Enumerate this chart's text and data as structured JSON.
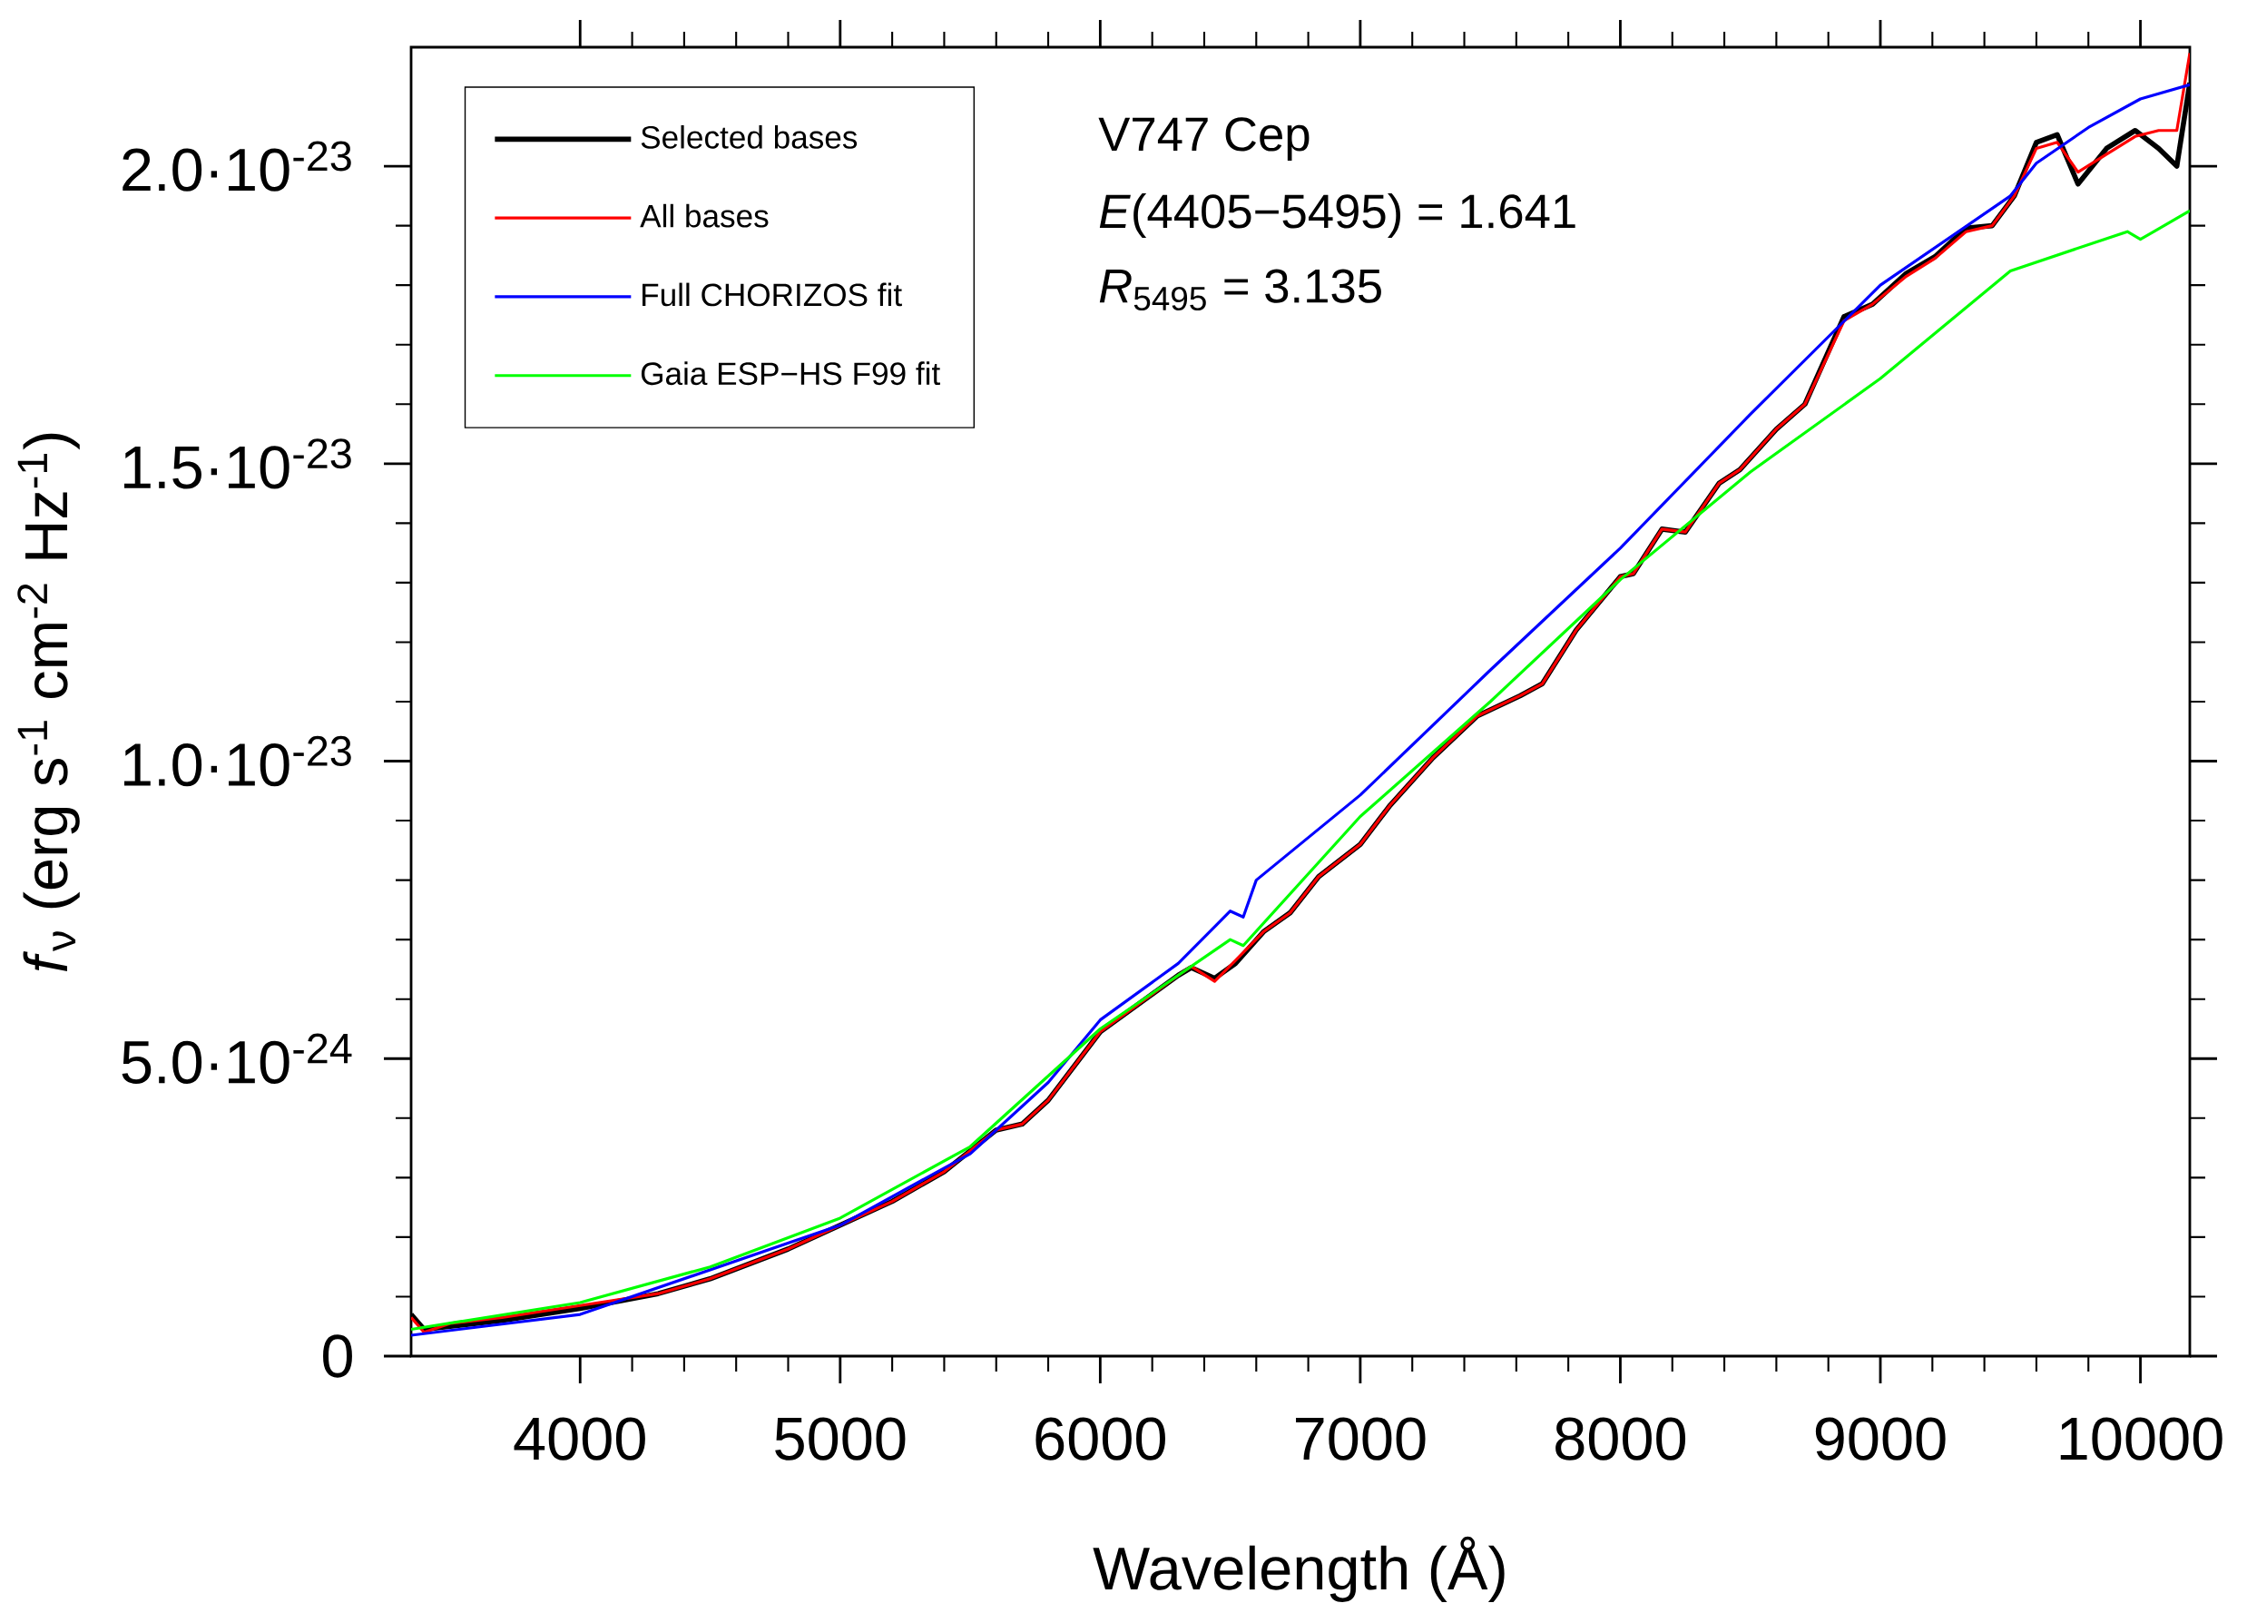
{
  "chart_data": {
    "type": "line",
    "xlabel": "Wavelength (Å)",
    "ylabel": "*f*$_{ν}$ (erg s$^{-1}$ cm$^{-2}$ Hz$^{-1}$)",
    "annotations": [
      "V747 Cep",
      "*E*(4405−5495) = 1.641",
      "*R*$_{5495}$ = 3.135"
    ],
    "xlim": [
      3350,
      10190
    ],
    "ylim": [
      0,
      2.2e-23
    ],
    "xticks": [
      4000,
      5000,
      6000,
      7000,
      8000,
      9000,
      10000
    ],
    "yticks": [
      {
        "value": 0,
        "label": "0"
      },
      {
        "value": 5e-24,
        "label": "5.0·10$^{-24}$"
      },
      {
        "value": 1e-23,
        "label": "1.0·10$^{-23}$"
      },
      {
        "value": 1.5e-23,
        "label": "1.5·10$^{-23}$"
      },
      {
        "value": 2e-23,
        "label": "2.0·10$^{-23}$"
      }
    ],
    "x": [
      3350,
      3400,
      3500,
      3700,
      4000,
      4300,
      4500,
      4800,
      5000,
      5200,
      5400,
      5600,
      5700,
      5800,
      6000,
      6300,
      6350,
      6440,
      6520,
      6630,
      6730,
      6840,
      7000,
      7115,
      7280,
      7450,
      7615,
      7700,
      7830,
      8000,
      8050,
      8160,
      8250,
      8380,
      8460,
      8600,
      8710,
      8860,
      8970,
      9100,
      9210,
      9330,
      9430,
      9515,
      9600,
      9680,
      9760,
      9870,
      9980,
      10070,
      10140,
      10190
    ],
    "grid": false,
    "legend": "top left",
    "marker": "none",
    "line_style": "solid",
    "series": [
      {
        "name": "Selected bases",
        "color": "#000000",
        "values": [
          7e-25,
          4.5e-25,
          5e-25,
          6e-25,
          8e-25,
          1.05e-24,
          1.3e-24,
          1.8e-24,
          2.2e-24,
          2.6e-24,
          3.1e-24,
          3.8e-24,
          3.9e-24,
          4.3e-24,
          5.45e-24,
          6.4e-24,
          6.53e-24,
          6.35e-24,
          6.6e-24,
          7.14e-24,
          7.45e-24,
          8.06e-24,
          8.6e-24,
          9.26e-24,
          1.006e-23,
          1.076e-23,
          1.11e-23,
          1.13e-23,
          1.22e-23,
          1.31e-23,
          1.315e-23,
          1.39e-23,
          1.385e-23,
          1.467e-23,
          1.49e-23,
          1.558e-23,
          1.6e-23,
          1.747e-23,
          1.768e-23,
          1.82e-23,
          1.848e-23,
          1.896e-23,
          1.9e-23,
          1.95e-23,
          2.04e-23,
          2.053e-23,
          1.97e-23,
          2.03e-23,
          2.06e-23,
          2.03e-23,
          2e-23,
          2.14e-23
        ]
      },
      {
        "name": "All bases",
        "color": "#ff0000",
        "values": [
          6.5e-25,
          4e-25,
          5.5e-25,
          6.5e-25,
          8.5e-25,
          1.05e-24,
          1.3e-24,
          1.8e-24,
          2.2e-24,
          2.6e-24,
          3.1e-24,
          3.8e-24,
          3.9e-24,
          4.3e-24,
          5.45e-24,
          6.4e-24,
          6.55e-24,
          6.3e-24,
          6.65e-24,
          7.14e-24,
          7.45e-24,
          8.06e-24,
          8.6e-24,
          9.26e-24,
          1.006e-23,
          1.076e-23,
          1.11e-23,
          1.13e-23,
          1.22e-23,
          1.31e-23,
          1.315e-23,
          1.39e-23,
          1.385e-23,
          1.467e-23,
          1.49e-23,
          1.558e-23,
          1.6e-23,
          1.74e-23,
          1.768e-23,
          1.815e-23,
          1.845e-23,
          1.89e-23,
          1.9e-23,
          1.95e-23,
          2.03e-23,
          2.04e-23,
          1.99e-23,
          2.02e-23,
          2.05e-23,
          2.06e-23,
          2.06e-23,
          2.19e-23
        ]
      },
      {
        "name": "Full CHORIZOS fit",
        "color": "#0000ff",
        "x": [
          3350,
          4000,
          5000,
          5500,
          5800,
          6000,
          6300,
          6500,
          6550,
          6600,
          7000,
          7500,
          8000,
          8500,
          9000,
          9500,
          9600,
          9800,
          10000,
          10190
        ],
        "values": [
          3.5e-25,
          7e-25,
          2.2e-24,
          3.4e-24,
          4.6e-24,
          5.65e-24,
          6.6e-24,
          7.48e-24,
          7.38e-24,
          8e-24,
          9.43e-24,
          1.153e-23,
          1.358e-23,
          1.583e-23,
          1.8e-23,
          1.95e-23,
          2.005e-23,
          2.065e-23,
          2.113e-23,
          2.137e-23
        ]
      },
      {
        "name": "Gaia ESP−HS F99 fit",
        "color": "#00ff00",
        "x": [
          3350,
          4000,
          4500,
          5000,
          5500,
          6000,
          6500,
          6550,
          7000,
          7500,
          8000,
          8500,
          9000,
          9500,
          9950,
          10000,
          10190
        ],
        "values": [
          4.5e-25,
          9e-25,
          1.5e-24,
          2.32e-24,
          3.52e-24,
          5.5e-24,
          7e-24,
          6.9e-24,
          9.07e-24,
          1.1e-23,
          1.305e-23,
          1.486e-23,
          1.643e-23,
          1.824e-23,
          1.89e-23,
          1.877e-23,
          1.925e-23
        ]
      }
    ]
  }
}
